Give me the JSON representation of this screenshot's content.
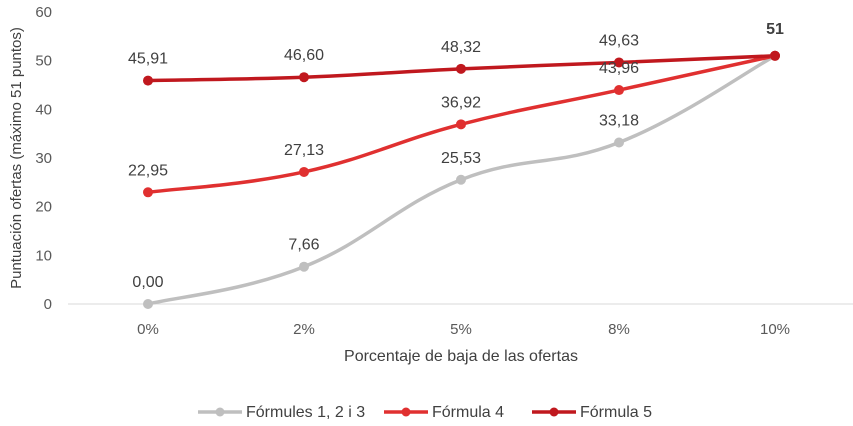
{
  "chart_data": {
    "type": "line",
    "categories": [
      "0%",
      "2%",
      "5%",
      "8%",
      "10%"
    ],
    "xlabel": "Porcentaje de baja de las ofertas",
    "ylabel": "Puntuación ofertas (máximo 51 puntos)",
    "ylim": [
      0,
      60
    ],
    "yticks": [
      0,
      10,
      20,
      30,
      40,
      50,
      60
    ],
    "grid": false,
    "smooth": true,
    "legend": "bottom",
    "series": [
      {
        "name": "Fórmules 1, 2 i 3",
        "values": [
          0.0,
          7.66,
          25.53,
          33.18,
          51
        ],
        "labels": [
          "0,00",
          "7,66",
          "25,53",
          "33,18",
          "51"
        ],
        "color": "#bfbfbf"
      },
      {
        "name": "Fórmula 4",
        "values": [
          22.95,
          27.13,
          36.92,
          43.96,
          51
        ],
        "labels": [
          "22,95",
          "27,13",
          "36,92",
          "43,96",
          "51"
        ],
        "color": "#e03030"
      },
      {
        "name": "Fórmula 5",
        "values": [
          45.91,
          46.6,
          48.32,
          49.63,
          51
        ],
        "labels": [
          "45,91",
          "46,60",
          "48,32",
          "49,63",
          "51"
        ],
        "color": "#c0181e"
      }
    ],
    "shared_end_label": "51"
  }
}
